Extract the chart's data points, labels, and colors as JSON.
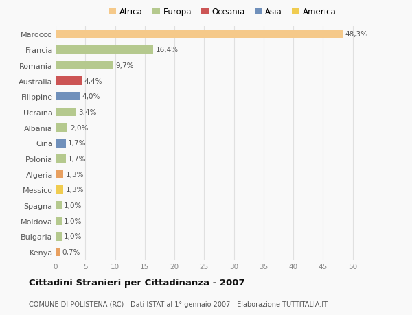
{
  "countries": [
    "Marocco",
    "Francia",
    "Romania",
    "Australia",
    "Filippine",
    "Ucraina",
    "Albania",
    "Cina",
    "Polonia",
    "Algeria",
    "Messico",
    "Spagna",
    "Moldova",
    "Bulgaria",
    "Kenya"
  ],
  "values": [
    48.3,
    16.4,
    9.7,
    4.4,
    4.0,
    3.4,
    2.0,
    1.7,
    1.7,
    1.3,
    1.3,
    1.0,
    1.0,
    1.0,
    0.7
  ],
  "labels": [
    "48,3%",
    "16,4%",
    "9,7%",
    "4,4%",
    "4,0%",
    "3,4%",
    "2,0%",
    "1,7%",
    "1,7%",
    "1,3%",
    "1,3%",
    "1,0%",
    "1,0%",
    "1,0%",
    "0,7%"
  ],
  "colors": [
    "#f5c98a",
    "#b5c98e",
    "#b5c98e",
    "#cc5555",
    "#7090bb",
    "#b5c98e",
    "#b5c98e",
    "#7090bb",
    "#b5c98e",
    "#e8a060",
    "#f0cc50",
    "#b5c98e",
    "#b5c98e",
    "#b5c98e",
    "#e8a060"
  ],
  "legend_labels": [
    "Africa",
    "Europa",
    "Oceania",
    "Asia",
    "America"
  ],
  "legend_colors": [
    "#f5c98a",
    "#b5c98e",
    "#cc5555",
    "#7090bb",
    "#f0cc50"
  ],
  "title": "Cittadini Stranieri per Cittadinanza - 2007",
  "subtitle": "COMUNE DI POLISTENA (RC) - Dati ISTAT al 1° gennaio 2007 - Elaborazione TUTTITALIA.IT",
  "xlim": [
    0,
    52
  ],
  "xticks": [
    0,
    5,
    10,
    15,
    20,
    25,
    30,
    35,
    40,
    45,
    50
  ],
  "bg_color": "#f9f9f9",
  "bar_height": 0.55,
  "grid_color": "#e0e0e0"
}
